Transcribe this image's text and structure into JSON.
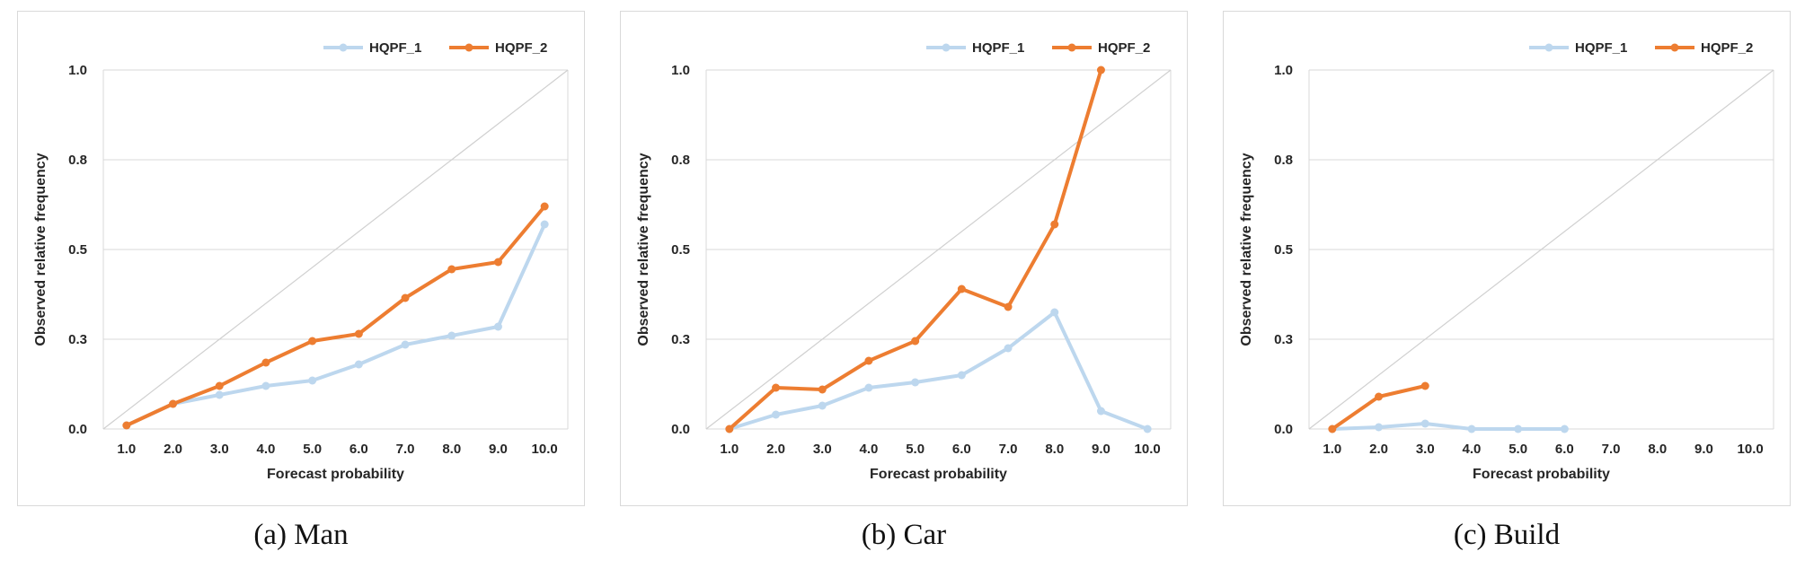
{
  "colors": {
    "series1": "#bdd7ee",
    "series2": "#ed7d31",
    "grid": "#d9d9d9",
    "diagonal": "#d0d0d0"
  },
  "chart_data": [
    {
      "type": "line",
      "caption": "(a) Man",
      "xlabel": "Forecast probability",
      "ylabel": "Observed relative frequency",
      "x_ticks": [
        "1.0",
        "2.0",
        "3.0",
        "4.0",
        "5.0",
        "6.0",
        "7.0",
        "8.0",
        "9.0",
        "10.0"
      ],
      "y_ticks": [
        "0.0",
        "0.3",
        "0.5",
        "0.8",
        "1.0"
      ],
      "ylim": [
        0,
        1
      ],
      "grid": true,
      "legend": "top-right",
      "diagonal": true,
      "series": [
        {
          "name": "HQPF_1",
          "color_key": "series1",
          "values": [
            0.01,
            0.07,
            0.095,
            0.12,
            0.135,
            0.18,
            0.235,
            0.26,
            0.285,
            0.57
          ]
        },
        {
          "name": "HQPF_2",
          "color_key": "series2",
          "values": [
            0.01,
            0.07,
            0.12,
            0.185,
            0.245,
            0.265,
            0.365,
            0.445,
            0.465,
            0.62
          ]
        }
      ]
    },
    {
      "type": "line",
      "caption": "(b) Car",
      "xlabel": "Forecast probability",
      "ylabel": "Observed relative frequency",
      "x_ticks": [
        "1.0",
        "2.0",
        "3.0",
        "4.0",
        "5.0",
        "6.0",
        "7.0",
        "8.0",
        "9.0",
        "10.0"
      ],
      "y_ticks": [
        "0.0",
        "0.3",
        "0.5",
        "0.8",
        "1.0"
      ],
      "ylim": [
        0,
        1
      ],
      "grid": true,
      "legend": "top-right",
      "diagonal": true,
      "series": [
        {
          "name": "HQPF_1",
          "color_key": "series1",
          "values": [
            0.0,
            0.04,
            0.065,
            0.115,
            0.13,
            0.15,
            0.225,
            0.325,
            0.05,
            0.0
          ]
        },
        {
          "name": "HQPF_2",
          "color_key": "series2",
          "values": [
            0.0,
            0.115,
            0.11,
            0.19,
            0.245,
            0.39,
            0.34,
            0.57,
            1.0,
            null
          ]
        }
      ]
    },
    {
      "type": "line",
      "caption": "(c) Build",
      "xlabel": "Forecast probability",
      "ylabel": "Observed relative frequency",
      "x_ticks": [
        "1.0",
        "2.0",
        "3.0",
        "4.0",
        "5.0",
        "6.0",
        "7.0",
        "8.0",
        "9.0",
        "10.0"
      ],
      "y_ticks": [
        "0.0",
        "0.3",
        "0.5",
        "0.8",
        "1.0"
      ],
      "ylim": [
        0,
        1
      ],
      "grid": true,
      "legend": "top-right",
      "diagonal": true,
      "series": [
        {
          "name": "HQPF_1",
          "color_key": "series1",
          "values": [
            0.0,
            0.005,
            0.015,
            0.0,
            0.0,
            0.0,
            null,
            null,
            null,
            null
          ]
        },
        {
          "name": "HQPF_2",
          "color_key": "series2",
          "values": [
            0.0,
            0.09,
            0.12,
            null,
            null,
            null,
            null,
            null,
            null,
            null
          ]
        }
      ]
    }
  ]
}
